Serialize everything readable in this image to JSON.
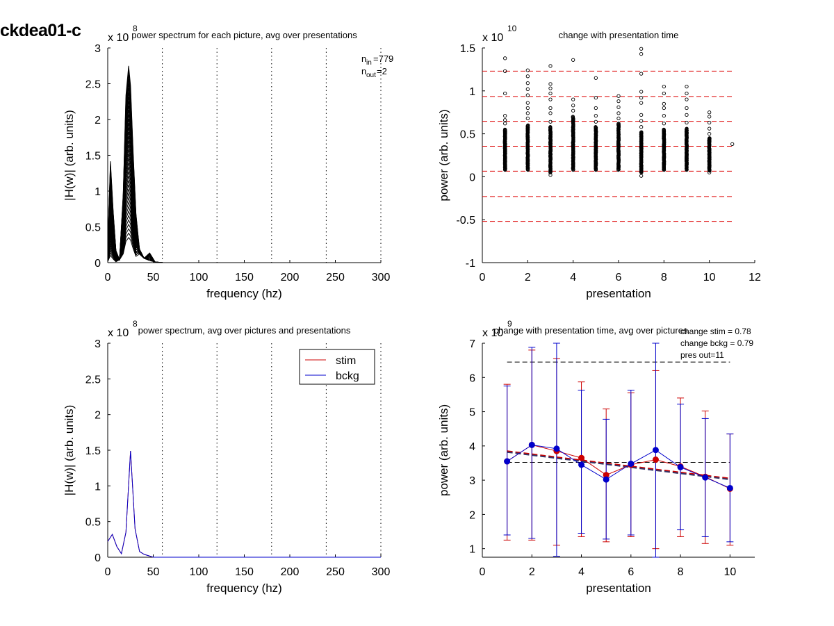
{
  "figure_title": "ckdea01-c",
  "chart_data": [
    {
      "id": "top-left",
      "type": "line",
      "title": "power spectrum for each picture, avg over presentations",
      "xlabel": "frequency (hz)",
      "ylabel": "|H(w)| (arb. units)",
      "y_exponent": "8",
      "xlim": [
        0,
        300
      ],
      "ylim": [
        0,
        3
      ],
      "xticks": [
        0,
        50,
        100,
        150,
        200,
        250,
        300
      ],
      "yticks": [
        0,
        0.5,
        1,
        1.5,
        2,
        2.5,
        3
      ],
      "vlines": [
        60,
        120,
        180,
        240,
        300
      ],
      "annotations": {
        "n_in": "779",
        "n_out": "2"
      },
      "series_count": 40,
      "series_color": "#000000",
      "series_shape": {
        "x": [
          0,
          5,
          10,
          15,
          20,
          25,
          30,
          35,
          40,
          45,
          50,
          55,
          60,
          300
        ],
        "y": [
          0.15,
          0.25,
          0.05,
          0.05,
          1.1,
          2.2,
          0.8,
          0.15,
          0.05,
          0.02,
          0.01,
          0.005,
          0,
          0
        ],
        "low_peak_range": [
          0.1,
          1.45
        ],
        "high_peak_range": [
          0.35,
          2.75
        ]
      }
    },
    {
      "id": "top-right",
      "type": "scatter",
      "title": "change with presentation time",
      "xlabel": "presentation",
      "ylabel": "power (arb. units)",
      "y_exponent": "10",
      "xlim": [
        0,
        12
      ],
      "ylim": [
        -1,
        1.5
      ],
      "xticks": [
        0,
        2,
        4,
        6,
        8,
        10,
        12
      ],
      "yticks": [
        -1,
        -0.5,
        0,
        0.5,
        1,
        1.5
      ],
      "hlines": [
        1.23,
        0.935,
        0.645,
        0.355,
        0.065,
        -0.23,
        -0.52
      ],
      "hline_color": "#dd0000",
      "marker": "open-circle",
      "columns": [
        {
          "x": 1,
          "dense_range": [
            0.08,
            0.55
          ],
          "outliers": [
            0.62,
            0.66,
            0.71,
            0.97,
            1.23,
            1.38
          ]
        },
        {
          "x": 2,
          "dense_range": [
            0.08,
            0.6
          ],
          "outliers": [
            0.68,
            0.74,
            0.8,
            0.86,
            0.95,
            1.02,
            1.09,
            1.17,
            1.24
          ]
        },
        {
          "x": 3,
          "dense_range": [
            0.05,
            0.58
          ],
          "outliers": [
            0.02,
            0.64,
            0.74,
            0.8,
            0.9,
            0.97,
            1.03,
            1.08,
            1.29
          ]
        },
        {
          "x": 4,
          "dense_range": [
            0.08,
            0.7
          ],
          "outliers": [
            0.77,
            0.83,
            0.9,
            1.36
          ]
        },
        {
          "x": 5,
          "dense_range": [
            0.08,
            0.58
          ],
          "outliers": [
            0.64,
            0.71,
            0.8,
            0.92,
            1.15
          ]
        },
        {
          "x": 6,
          "dense_range": [
            0.08,
            0.62
          ],
          "outliers": [
            0.68,
            0.74,
            0.81,
            0.88,
            0.94
          ]
        },
        {
          "x": 7,
          "dense_range": [
            0.05,
            0.52
          ],
          "outliers": [
            0.01,
            0.58,
            0.65,
            0.72,
            0.86,
            0.92,
            0.99,
            1.2,
            1.43,
            1.49
          ]
        },
        {
          "x": 8,
          "dense_range": [
            0.08,
            0.55
          ],
          "outliers": [
            0.62,
            0.71,
            0.8,
            0.85,
            0.97,
            1.05
          ]
        },
        {
          "x": 9,
          "dense_range": [
            0.08,
            0.56
          ],
          "outliers": [
            0.63,
            0.72,
            0.8,
            0.9,
            0.97,
            1.05
          ]
        },
        {
          "x": 10,
          "dense_range": [
            0.07,
            0.45
          ],
          "outliers": [
            0.05,
            0.5,
            0.56,
            0.63,
            0.7,
            0.75
          ]
        },
        {
          "x": 11,
          "dense_range": [
            0.38,
            0.38
          ],
          "outliers": []
        }
      ]
    },
    {
      "id": "bottom-left",
      "type": "line",
      "title": "power spectrum, avg over pictures and presentations",
      "xlabel": "frequency (hz)",
      "ylabel": "|H(w)| (arb. units)",
      "y_exponent": "8",
      "xlim": [
        0,
        300
      ],
      "ylim": [
        0,
        3
      ],
      "xticks": [
        0,
        50,
        100,
        150,
        200,
        250,
        300
      ],
      "yticks": [
        0,
        0.5,
        1,
        1.5,
        2,
        2.5,
        3
      ],
      "vlines": [
        60,
        120,
        180,
        240,
        300
      ],
      "legend": [
        {
          "label": "stim",
          "color": "#cc0000"
        },
        {
          "label": "bckg",
          "color": "#0000cc"
        }
      ],
      "legend_position": "top-right",
      "series": [
        {
          "name": "stim",
          "color": "#cc0000",
          "x": [
            0,
            5,
            10,
            15,
            20,
            25,
            30,
            35,
            40,
            45,
            50,
            300
          ],
          "y": [
            0.22,
            0.32,
            0.15,
            0.05,
            0.35,
            1.49,
            0.4,
            0.08,
            0.04,
            0.02,
            0,
            0
          ]
        },
        {
          "name": "bckg",
          "color": "#0000cc",
          "x": [
            0,
            5,
            10,
            15,
            20,
            25,
            30,
            35,
            40,
            45,
            50,
            300
          ],
          "y": [
            0.22,
            0.32,
            0.15,
            0.05,
            0.35,
            1.49,
            0.4,
            0.08,
            0.04,
            0.02,
            0,
            0
          ]
        }
      ]
    },
    {
      "id": "bottom-right",
      "type": "line",
      "title": "change with presentation time, avg over pictures",
      "xlabel": "presentation",
      "ylabel": "power (arb. units)",
      "y_exponent": "9",
      "xlim": [
        0,
        11
      ],
      "ylim": [
        0.75,
        7
      ],
      "xticks": [
        0,
        2,
        4,
        6,
        8,
        10
      ],
      "yticks": [
        1,
        2,
        3,
        4,
        5,
        6,
        7
      ],
      "annotations": [
        "change stim = 0.78",
        "change bckg = 0.79",
        "pres out=11"
      ],
      "hlines": [
        {
          "y": 6.45,
          "x0": 1,
          "x1": 10,
          "color": "#000000"
        },
        {
          "y": 3.52,
          "x0": 1,
          "x1": 10,
          "color": "#000000"
        }
      ],
      "trend_lines": [
        {
          "color": "#cc0000",
          "x": [
            1,
            10
          ],
          "y": [
            3.85,
            3.05
          ]
        },
        {
          "color": "#333366",
          "x": [
            1,
            10
          ],
          "y": [
            3.82,
            3.02
          ]
        }
      ],
      "series": [
        {
          "name": "stim",
          "color": "#cc0000",
          "x": [
            1,
            2,
            3,
            4,
            5,
            6,
            7,
            8,
            9,
            10
          ],
          "y": [
            3.55,
            4.03,
            3.85,
            3.65,
            3.15,
            3.45,
            3.6,
            3.4,
            3.1,
            2.75
          ],
          "err_low": [
            1.25,
            1.25,
            1.1,
            1.35,
            1.2,
            1.35,
            1.0,
            1.35,
            1.15,
            1.1
          ],
          "err_high": [
            5.8,
            6.8,
            6.55,
            5.87,
            5.08,
            5.55,
            6.2,
            5.4,
            5.02,
            4.35
          ]
        },
        {
          "name": "bckg",
          "color": "#0000cc",
          "x": [
            1,
            2,
            3,
            4,
            5,
            6,
            7,
            8,
            9,
            10
          ],
          "y": [
            3.55,
            4.03,
            3.92,
            3.45,
            3.02,
            3.48,
            3.88,
            3.38,
            3.08,
            2.77
          ],
          "err_low": [
            1.4,
            1.3,
            0.78,
            1.45,
            1.28,
            1.4,
            0.75,
            1.55,
            1.35,
            1.2
          ],
          "err_high": [
            5.75,
            6.88,
            7.0,
            5.63,
            4.78,
            5.63,
            7.0,
            5.22,
            4.8,
            4.35
          ]
        }
      ]
    }
  ]
}
